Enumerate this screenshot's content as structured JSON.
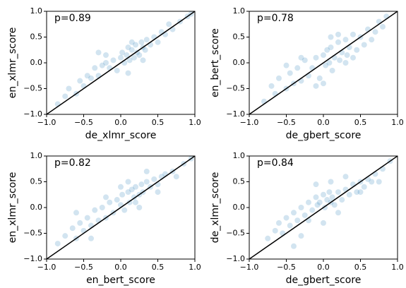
{
  "chart_data": [
    {
      "type": "scatter",
      "annotation": "p=0.89",
      "x_label": "de_xlmr_score",
      "y_label": "en_xlmr_score",
      "color": "#1f77b4",
      "xlim": [
        -1,
        1
      ],
      "ylim": [
        -1,
        1
      ],
      "xticks": [
        {
          "value": -1,
          "label": "−1.0"
        },
        {
          "value": -0.5,
          "label": "−0.5"
        },
        {
          "value": 0,
          "label": "0.0"
        },
        0.5,
        {
          "value": 1,
          "label": "1.0"
        }
      ],
      "yticks": [
        {
          "value": -1,
          "label": "−1.0"
        },
        {
          "value": -0.5,
          "label": "−0.5"
        },
        {
          "value": 0,
          "label": "0.0"
        },
        0.5,
        {
          "value": 1,
          "label": "1.0"
        }
      ],
      "x": [
        -0.85,
        -0.7,
        -0.6,
        -0.55,
        -0.5,
        -0.45,
        -0.4,
        -0.35,
        -0.3,
        -0.25,
        -0.2,
        -0.15,
        -0.1,
        -0.05,
        0,
        0.02,
        0.05,
        0.08,
        0.1,
        0.12,
        0.15,
        0.18,
        0.2,
        0.22,
        0.25,
        0.28,
        0.3,
        0.33,
        0.35,
        0.4,
        0.45,
        0.5,
        0.55,
        0.6,
        0.7,
        0.8,
        0.9,
        -0.3,
        0.1,
        0.3,
        -0.75,
        0.65,
        0.95,
        -0.2,
        0.15
      ],
      "y": [
        -0.8,
        -0.5,
        -0.6,
        -0.35,
        -0.45,
        -0.25,
        -0.3,
        -0.1,
        -0.25,
        -0.05,
        0,
        -0.1,
        0.05,
        -0.15,
        0.1,
        0.2,
        0,
        0.15,
        0.3,
        0.05,
        0.25,
        0.1,
        0.35,
        0.2,
        0.15,
        0.4,
        0.3,
        0.25,
        0.45,
        0.35,
        0.5,
        0.4,
        0.6,
        0.55,
        0.65,
        0.8,
        0.9,
        0.2,
        -0.2,
        0.05,
        -0.65,
        0.75,
        0.95,
        0.15,
        0.4
      ]
    },
    {
      "type": "scatter",
      "annotation": "p=0.78",
      "x_label": "de_gbert_score",
      "y_label": "en_bert_score",
      "color": "#1f77b4",
      "xlim": [
        -1,
        1
      ],
      "ylim": [
        -1,
        1
      ],
      "xticks": [
        {
          "value": -1,
          "label": "−1.0"
        },
        {
          "value": -0.5,
          "label": "−0.5"
        },
        {
          "value": 0,
          "label": "0.0"
        },
        0.5,
        {
          "value": 1,
          "label": "1.0"
        }
      ],
      "yticks": [
        {
          "value": -1,
          "label": "−1.0"
        },
        {
          "value": -0.5,
          "label": "−0.5"
        },
        {
          "value": 0,
          "label": "0.0"
        },
        0.5,
        {
          "value": 1,
          "label": "1.0"
        }
      ],
      "x": [
        -0.8,
        -0.7,
        -0.65,
        -0.6,
        -0.5,
        -0.45,
        -0.4,
        -0.35,
        -0.3,
        -0.25,
        -0.2,
        -0.15,
        -0.1,
        -0.05,
        0,
        0.03,
        0.05,
        0.08,
        0.1,
        0.12,
        0.15,
        0.2,
        0.22,
        0.25,
        0.3,
        0.32,
        0.35,
        0.4,
        0.45,
        0.5,
        0.55,
        0.6,
        0.65,
        0.7,
        0.75,
        0.8,
        0.85,
        -0.5,
        0.0,
        0.2,
        -0.3,
        0.4,
        -0.1,
        0.3,
        0.1
      ],
      "y": [
        -0.75,
        -0.45,
        -0.6,
        -0.3,
        -0.5,
        -0.2,
        -0.4,
        -0.1,
        -0.35,
        0.05,
        -0.25,
        -0.1,
        0.1,
        -0.3,
        0.15,
        -0.05,
        0.25,
        0,
        0.3,
        -0.15,
        0.1,
        0.4,
        0.05,
        0.2,
        0.45,
        0.15,
        0.3,
        0.55,
        0.25,
        0.5,
        0.35,
        0.65,
        0.45,
        0.6,
        0.8,
        0.7,
        0.9,
        -0.05,
        -0.4,
        0.55,
        0.1,
        0.1,
        -0.45,
        0.0,
        0.5
      ]
    },
    {
      "type": "scatter",
      "annotation": "p=0.82",
      "x_label": "en_bert_score",
      "y_label": "en_xlmr_score",
      "color": "#1f77b4",
      "xlim": [
        -1,
        1
      ],
      "ylim": [
        -1,
        1
      ],
      "xticks": [
        {
          "value": -1,
          "label": "−1.0"
        },
        {
          "value": -0.5,
          "label": "−0.5"
        },
        {
          "value": 0,
          "label": "0.0"
        },
        0.5,
        {
          "value": 1,
          "label": "1.0"
        }
      ],
      "yticks": [
        {
          "value": -1,
          "label": "−1.0"
        },
        {
          "value": -0.5,
          "label": "−0.5"
        },
        {
          "value": 0,
          "label": "0.0"
        },
        0.5,
        {
          "value": 1,
          "label": "1.0"
        }
      ],
      "x": [
        -0.85,
        -0.75,
        -0.65,
        -0.6,
        -0.55,
        -0.5,
        -0.45,
        -0.4,
        -0.35,
        -0.3,
        -0.25,
        -0.2,
        -0.15,
        -0.1,
        -0.05,
        0,
        0.02,
        0.05,
        0.1,
        0.12,
        0.15,
        0.18,
        0.2,
        0.25,
        0.28,
        0.3,
        0.35,
        0.4,
        0.45,
        0.5,
        0.55,
        0.6,
        0.7,
        0.75,
        0.85,
        0.95,
        -0.4,
        0.0,
        0.2,
        -0.2,
        0.35,
        0.1,
        -0.6,
        0.5,
        0.25
      ],
      "y": [
        -0.7,
        -0.55,
        -0.4,
        -0.6,
        -0.3,
        -0.45,
        -0.2,
        -0.35,
        -0.05,
        -0.25,
        0,
        -0.2,
        0.1,
        -0.1,
        0.15,
        0.05,
        0.25,
        -0.05,
        0.3,
        0.1,
        0.35,
        0.2,
        0.4,
        0.25,
        0.45,
        0.3,
        0.5,
        0.4,
        0.55,
        0.45,
        0.6,
        0.65,
        0.7,
        0.6,
        0.85,
        0.95,
        -0.6,
        0.4,
        0.1,
        0.2,
        0.7,
        0.5,
        -0.1,
        0.3,
        0.0
      ]
    },
    {
      "type": "scatter",
      "annotation": "p=0.84",
      "x_label": "de_gbert_score",
      "y_label": "de_xlmr_score",
      "color": "#1f77b4",
      "xlim": [
        -1,
        1
      ],
      "ylim": [
        -1,
        1
      ],
      "xticks": [
        {
          "value": -1,
          "label": "−1.0"
        },
        {
          "value": -0.5,
          "label": "−0.5"
        },
        {
          "value": 0,
          "label": "0.0"
        },
        0.5,
        {
          "value": 1,
          "label": "1.0"
        }
      ],
      "yticks": [
        {
          "value": -1,
          "label": "−1.0"
        },
        {
          "value": -0.5,
          "label": "−0.5"
        },
        {
          "value": 0,
          "label": "0.0"
        },
        0.5,
        {
          "value": 1,
          "label": "1.0"
        }
      ],
      "x": [
        -0.75,
        -0.65,
        -0.6,
        -0.55,
        -0.5,
        -0.45,
        -0.4,
        -0.35,
        -0.3,
        -0.25,
        -0.2,
        -0.15,
        -0.1,
        -0.08,
        -0.05,
        0,
        0.02,
        0.05,
        0.08,
        0.1,
        0.12,
        0.15,
        0.2,
        0.25,
        0.3,
        0.35,
        0.4,
        0.45,
        0.5,
        0.55,
        0.6,
        0.65,
        0.7,
        0.8,
        0.9,
        -0.4,
        0.0,
        0.1,
        -0.2,
        0.3,
        0.5,
        -0.1,
        0.2,
        0.75,
        -0.3
      ],
      "y": [
        -0.6,
        -0.45,
        -0.3,
        -0.5,
        -0.2,
        -0.35,
        -0.1,
        -0.25,
        0,
        -0.15,
        0.1,
        -0.05,
        0.2,
        0.05,
        0.1,
        0.25,
        0,
        0.15,
        0.3,
        0.1,
        0.2,
        0.05,
        0.3,
        0.15,
        0.35,
        0.25,
        0.45,
        0.3,
        0.5,
        0.4,
        0.55,
        0.5,
        0.65,
        0.75,
        0.9,
        -0.75,
        -0.3,
        0.5,
        -0.25,
        0.6,
        0.3,
        0.45,
        -0.1,
        0.5,
        -0.55
      ]
    }
  ]
}
